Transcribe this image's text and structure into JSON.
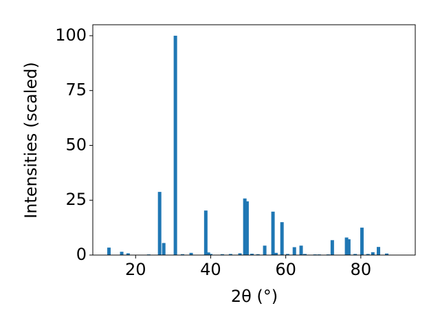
{
  "chart_data": {
    "type": "bar",
    "xlabel": "2θ (°)",
    "ylabel": "Intensities (scaled)",
    "color": "#1f77b4",
    "x": [
      12.9,
      16.3,
      18.0,
      23.5,
      26.4,
      27.5,
      30.6,
      32.5,
      34.8,
      38.7,
      39.4,
      40.0,
      43.1,
      45.3,
      47.8,
      49.1,
      49.7,
      51.0,
      52.6,
      54.4,
      56.6,
      57.4,
      59.0,
      60.5,
      62.3,
      64.1,
      65.1,
      67.8,
      68.9,
      71.3,
      72.4,
      76.2,
      76.8,
      78.5,
      80.3,
      81.9,
      83.2,
      84.7,
      86.9
    ],
    "values": [
      3.4,
      1.5,
      0.8,
      0.3,
      28.8,
      5.5,
      100,
      0.4,
      1.0,
      20.3,
      1.2,
      0.5,
      0.4,
      0.5,
      0.8,
      25.8,
      24.5,
      0.6,
      0.4,
      4.3,
      19.8,
      1.0,
      15.0,
      0.5,
      3.6,
      4.3,
      0.5,
      0.3,
      0.3,
      0.3,
      6.8,
      8.0,
      7.2,
      0.5,
      12.5,
      0.5,
      1.3,
      3.7,
      0.7
    ],
    "xlim": [
      8.6,
      94.5
    ],
    "ylim": [
      0,
      105
    ],
    "xticks": [
      20,
      40,
      60,
      80
    ],
    "yticks": [
      0,
      25,
      50,
      75,
      100
    ]
  }
}
